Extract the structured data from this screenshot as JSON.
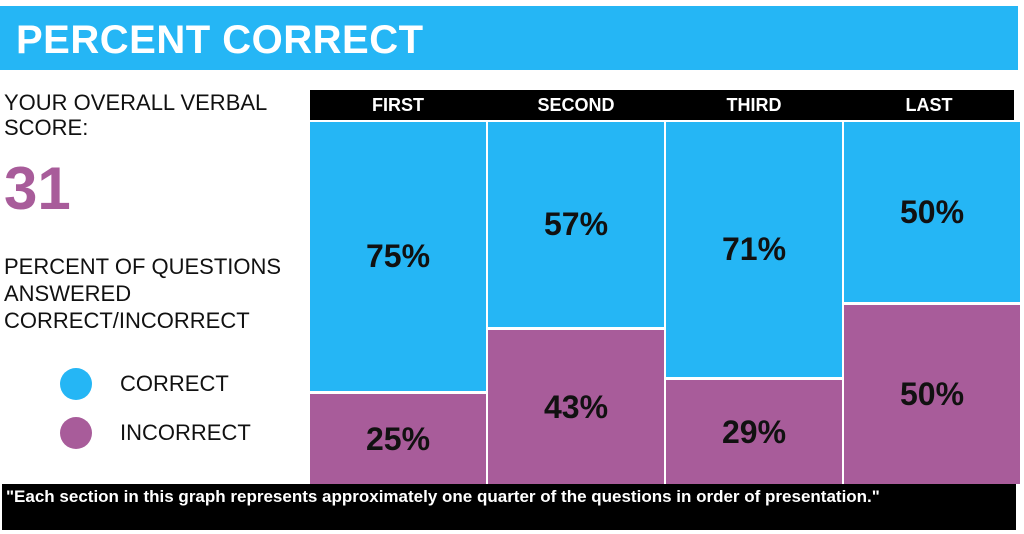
{
  "header": {
    "title": "PERCENT CORRECT"
  },
  "score": {
    "label": "YOUR OVERALL VERBAL SCORE:",
    "value": "31"
  },
  "percent_label": "PERCENT OF QUESTIONS ANSWERED CORRECT/INCORRECT",
  "legend": [
    {
      "label": "CORRECT",
      "color": "#25b6f5",
      "icon": "circle"
    },
    {
      "label": "INCORRECT",
      "color": "#a85c9a",
      "icon": "circle"
    }
  ],
  "footnote": "\"Each section in this graph represents approximately one quarter of the questions in order of presentation.\"",
  "chart_data": {
    "type": "bar",
    "stacked": true,
    "normalized": true,
    "categories": [
      "FIRST",
      "SECOND",
      "THIRD",
      "LAST"
    ],
    "series": [
      {
        "name": "CORRECT",
        "values": [
          75,
          57,
          71,
          50
        ],
        "color": "#25b6f5"
      },
      {
        "name": "INCORRECT",
        "values": [
          25,
          43,
          29,
          50
        ],
        "color": "#a85c9a"
      }
    ],
    "value_labels": {
      "CORRECT": [
        "75%",
        "57%",
        "71%",
        "50%"
      ],
      "INCORRECT": [
        "25%",
        "43%",
        "29%",
        "50%"
      ]
    },
    "ylim": [
      0,
      100
    ],
    "grid": false,
    "legend_position": "left"
  }
}
